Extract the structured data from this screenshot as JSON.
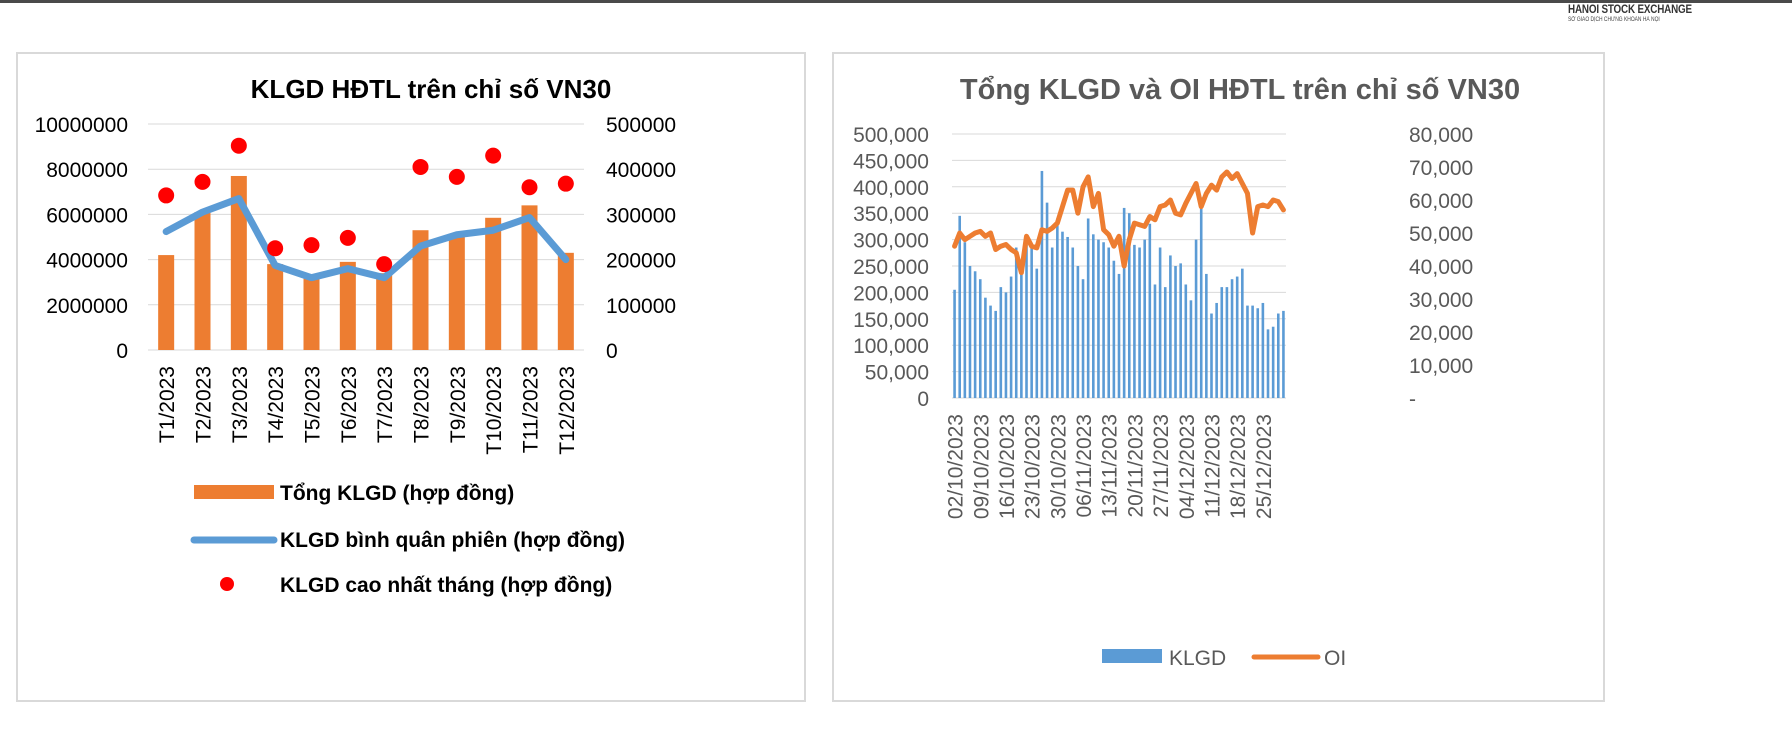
{
  "header": {
    "logo_main": "HANOI STOCK EXCHANGE",
    "logo_sub": "SỞ GIAO DỊCH CHỨNG KHOÁN HÀ NỘI"
  },
  "chart_data": [
    {
      "type": "bar",
      "title": "KLGD HĐTL trên chỉ số VN30",
      "categories": [
        "T1/2023",
        "T2/2023",
        "T3/2023",
        "T4/2023",
        "T5/2023",
        "T6/2023",
        "T7/2023",
        "T8/2023",
        "T9/2023",
        "T10/2023",
        "T11/2023",
        "T12/2023"
      ],
      "left_axis": {
        "ylim": [
          0,
          10000000
        ],
        "ticks": [
          "10000000",
          "8000000",
          "6000000",
          "4000000",
          "2000000",
          "0"
        ]
      },
      "right_axis": {
        "ylim": [
          0,
          500000
        ],
        "ticks": [
          "500000",
          "400000",
          "300000",
          "200000",
          "100000",
          "0"
        ]
      },
      "series": [
        {
          "name": "Tổng KLGD (hợp đồng)",
          "kind": "bar",
          "axis": "left",
          "color": "#ed7d31",
          "values": [
            4200000,
            6100000,
            7700000,
            3800000,
            3300000,
            3900000,
            3400000,
            5300000,
            5000000,
            5850000,
            6400000,
            4300000
          ]
        },
        {
          "name": "KLGD bình quân phiên (hợp đồng)",
          "kind": "line",
          "axis": "right",
          "color": "#5b9bd5",
          "values": [
            262000,
            305000,
            335000,
            187000,
            160000,
            180000,
            160000,
            230000,
            255000,
            265000,
            293000,
            200000
          ]
        },
        {
          "name": "KLGD cao nhất tháng (hợp đồng)",
          "kind": "dots",
          "axis": "right",
          "color": "#ff0000",
          "values": [
            342000,
            372000,
            452000,
            225000,
            232000,
            248000,
            190000,
            405000,
            383000,
            430000,
            360000,
            368000
          ]
        }
      ]
    },
    {
      "type": "bar",
      "title": "Tổng KLGD và OI HĐTL trên chỉ số VN30",
      "x_tick_labels": [
        "02/10/2023",
        "09/10/2023",
        "16/10/2023",
        "23/10/2023",
        "30/10/2023",
        "06/11/2023",
        "13/11/2023",
        "20/11/2023",
        "27/11/2023",
        "04/12/2023",
        "11/12/2023",
        "18/12/2023",
        "25/12/2023"
      ],
      "left_axis": {
        "ylim": [
          0,
          500000
        ],
        "ticks": [
          "500,000",
          "450,000",
          "400,000",
          "350,000",
          "300,000",
          "250,000",
          "200,000",
          "150,000",
          "100,000",
          "50,000",
          "0"
        ]
      },
      "right_axis": {
        "ylim": [
          0,
          80000
        ],
        "ticks": [
          "80,000",
          "70,000",
          "60,000",
          "50,000",
          "40,000",
          "30,000",
          "20,000",
          "10,000",
          "-"
        ]
      },
      "series": [
        {
          "name": "KLGD",
          "kind": "bar",
          "axis": "left",
          "color": "#5b9bd5",
          "values": [
            205000,
            345000,
            295000,
            250000,
            240000,
            225000,
            190000,
            175000,
            165000,
            210000,
            200000,
            230000,
            285000,
            245000,
            290000,
            285000,
            245000,
            430000,
            370000,
            285000,
            340000,
            315000,
            305000,
            285000,
            250000,
            225000,
            340000,
            310000,
            300000,
            295000,
            285000,
            260000,
            235000,
            360000,
            350000,
            290000,
            285000,
            300000,
            330000,
            215000,
            285000,
            210000,
            270000,
            250000,
            255000,
            215000,
            185000,
            300000,
            380000,
            235000,
            160000,
            180000,
            210000,
            210000,
            225000,
            230000,
            245000,
            175000,
            175000,
            170000,
            180000,
            130000,
            135000,
            160000,
            165000
          ]
        },
        {
          "name": "OI",
          "kind": "line",
          "axis": "right",
          "color": "#ed7d31",
          "values": [
            46000,
            50000,
            48000,
            49000,
            50000,
            50500,
            49000,
            50000,
            45000,
            46000,
            46500,
            45000,
            44000,
            38000,
            49000,
            46000,
            45500,
            51000,
            50500,
            51500,
            53000,
            58000,
            63000,
            63000,
            56000,
            64000,
            67000,
            58000,
            62000,
            51000,
            49500,
            46000,
            49000,
            40000,
            48000,
            53000,
            52500,
            52000,
            55000,
            54000,
            58000,
            58500,
            60000,
            56000,
            55500,
            59000,
            62000,
            65000,
            58000,
            62000,
            64500,
            63000,
            67000,
            68500,
            66500,
            68000,
            65000,
            62000,
            50000,
            58000,
            58500,
            58000,
            60000,
            59500,
            57000
          ]
        }
      ]
    }
  ]
}
